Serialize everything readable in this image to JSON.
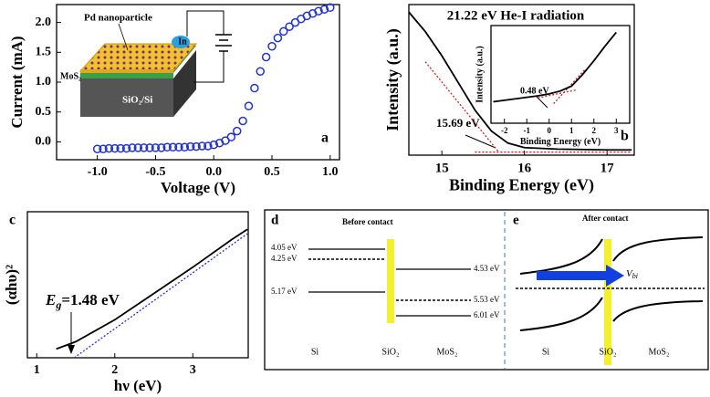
{
  "chart_data": [
    {
      "type": "scatter",
      "label": "a",
      "xlabel": "Voltage (V)",
      "ylabel": "Current (mA)",
      "x": [
        -1.0,
        -0.95,
        -0.9,
        -0.85,
        -0.8,
        -0.75,
        -0.7,
        -0.65,
        -0.6,
        -0.55,
        -0.5,
        -0.45,
        -0.4,
        -0.35,
        -0.3,
        -0.25,
        -0.2,
        -0.15,
        -0.1,
        -0.05,
        0,
        0.05,
        0.1,
        0.15,
        0.2,
        0.25,
        0.3,
        0.35,
        0.4,
        0.45,
        0.5,
        0.55,
        0.6,
        0.65,
        0.7,
        0.75,
        0.8,
        0.85,
        0.9,
        0.95,
        1.0
      ],
      "values": [
        -0.12,
        -0.12,
        -0.11,
        -0.11,
        -0.11,
        -0.11,
        -0.1,
        -0.1,
        -0.1,
        -0.1,
        -0.1,
        -0.1,
        -0.09,
        -0.09,
        -0.09,
        -0.09,
        -0.08,
        -0.08,
        -0.07,
        -0.07,
        -0.05,
        -0.02,
        0.02,
        0.08,
        0.18,
        0.35,
        0.6,
        0.9,
        1.18,
        1.42,
        1.6,
        1.74,
        1.85,
        1.93,
        2.0,
        2.06,
        2.11,
        2.15,
        2.19,
        2.22,
        2.25
      ],
      "color": "#2233cc",
      "xlim": [
        -1.35,
        1.08
      ],
      "ylim": [
        -0.3,
        2.3
      ],
      "xticks": [
        {
          "value": -1,
          "label": "-1.0"
        },
        -0.5,
        {
          "value": 0,
          "label": "0.0"
        },
        0.5,
        {
          "value": 1,
          "label": "1.0"
        }
      ],
      "yticks": [
        {
          "value": 0,
          "label": "0.0"
        },
        0.5,
        {
          "value": 1,
          "label": "1.0"
        },
        1.5,
        {
          "value": 2,
          "label": "2.0"
        }
      ],
      "inset_labels": [
        "Pd nanoparticle",
        "In",
        "MoS₂",
        "SiO₂/Si"
      ]
    },
    {
      "type": "line",
      "label": "b",
      "title": "21.22 eV He-I radiation",
      "xlabel": "Binding Energy (eV)",
      "ylabel": "Intensity (a.u.)",
      "x": [
        14.6,
        14.8,
        15.0,
        15.2,
        15.4,
        15.6,
        15.8,
        16.0,
        16.4,
        17.0,
        17.3
      ],
      "values": [
        0.95,
        0.82,
        0.66,
        0.48,
        0.3,
        0.16,
        0.08,
        0.05,
        0.04,
        0.035,
        0.035
      ],
      "color": "#000000",
      "xlim": [
        14.6,
        17.33
      ],
      "ylim": [
        0,
        1
      ],
      "xticks": [
        15,
        16,
        17
      ],
      "fits": [
        {
          "x": [
            14.8,
            15.69
          ],
          "values": [
            0.62,
            0.02
          ],
          "color": "#cc2222"
        },
        {
          "x": [
            15.4,
            17.3
          ],
          "values": [
            0.02,
            0.02
          ],
          "color": "#cc2222"
        }
      ],
      "annotation": "15.69 eV",
      "inset": {
        "xlabel": "Binding Energy (eV)",
        "ylabel": "Intensity (a.u.)",
        "x": [
          -2.5,
          -1.5,
          -0.5,
          0,
          0.5,
          1,
          1.5,
          2,
          2.5,
          3
        ],
        "values": [
          0.22,
          0.25,
          0.28,
          0.3,
          0.33,
          0.38,
          0.5,
          0.64,
          0.79,
          0.93
        ],
        "color": "#000000",
        "xlim": [
          -2.6,
          3.6
        ],
        "ylim": [
          0,
          1
        ],
        "xticks": [
          -2,
          -1,
          0,
          1,
          2,
          3
        ],
        "fits": [
          {
            "x": [
              0.2,
              1.6
            ],
            "values": [
              0.2,
              0.55
            ],
            "color": "#cc2222"
          },
          {
            "x": [
              -0.5,
              1.2
            ],
            "values": [
              0.26,
              0.34
            ],
            "color": "#cc2222"
          }
        ],
        "annotation": "0.48 eV"
      }
    },
    {
      "type": "line",
      "label": "c",
      "xlabel": "hν (eV)",
      "ylabel": "(αhυ)²",
      "x": [
        1.25,
        1.5,
        2.0,
        2.5,
        3.0,
        3.5,
        3.7
      ],
      "values": [
        0.06,
        0.11,
        0.26,
        0.44,
        0.62,
        0.81,
        0.88
      ],
      "color": "#000000",
      "xlim": [
        0.88,
        3.71
      ],
      "ylim": [
        0,
        1
      ],
      "xticks": [
        1,
        2,
        3
      ],
      "fits": [
        {
          "x": [
            1.48,
            3.7
          ],
          "values": [
            0,
            0.85
          ],
          "color": "#2233cc"
        }
      ],
      "annotation": [
        "E",
        "g",
        "=1.48 eV"
      ]
    }
  ],
  "diagram": {
    "panels": [
      {
        "label": "d",
        "title": "Before contact",
        "levels": [
          "4.05 eV",
          "4.25 eV",
          "5.17 eV",
          "4.53 eV",
          "5.53 eV",
          "6.01 eV"
        ],
        "regions": [
          "Si",
          "SiO₂",
          "MoS₂"
        ]
      },
      {
        "label": "e",
        "title": "After contact",
        "vbi": [
          "V",
          "bi"
        ],
        "regions": [
          "Si",
          "SiO₂",
          "MoS₂"
        ]
      }
    ]
  }
}
